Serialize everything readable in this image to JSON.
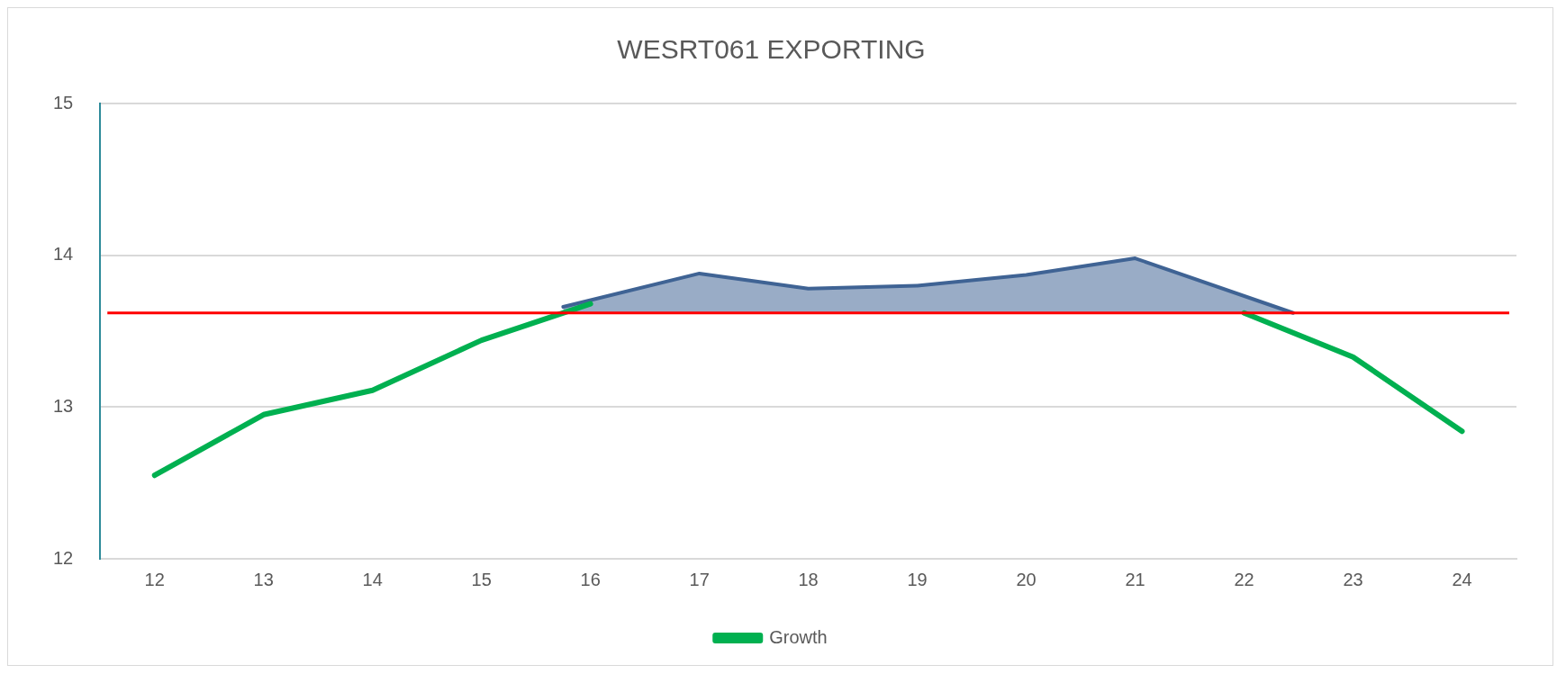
{
  "chart_data": {
    "type": "line",
    "title": "WESRT061 EXPORTING",
    "xlim": [
      11.5,
      24.5
    ],
    "xticks": [
      12,
      13,
      14,
      15,
      16,
      17,
      18,
      19,
      20,
      21,
      22,
      23,
      24
    ],
    "ylim": [
      12,
      15
    ],
    "yticks": [
      12,
      13,
      14,
      15
    ],
    "grid": "y",
    "legend": "bottom",
    "series": [
      {
        "name": "Growth",
        "color": "#00b050",
        "x": [
          12,
          13,
          14,
          15,
          16,
          17,
          18,
          19,
          20,
          21,
          22,
          23,
          24
        ],
        "values": [
          12.55,
          12.95,
          13.11,
          13.44,
          13.68,
          null,
          null,
          null,
          null,
          null,
          13.62,
          13.33,
          12.84
        ]
      },
      {
        "type": "area",
        "color": "#3f6394",
        "x": [
          15.75,
          17,
          18,
          19,
          20,
          21,
          22.45
        ],
        "values": [
          13.66,
          13.88,
          13.78,
          13.8,
          13.87,
          13.98,
          13.62
        ]
      }
    ],
    "ref_lines": [
      {
        "axis": "y",
        "value": 13.62,
        "color": "#ff0000"
      }
    ]
  }
}
